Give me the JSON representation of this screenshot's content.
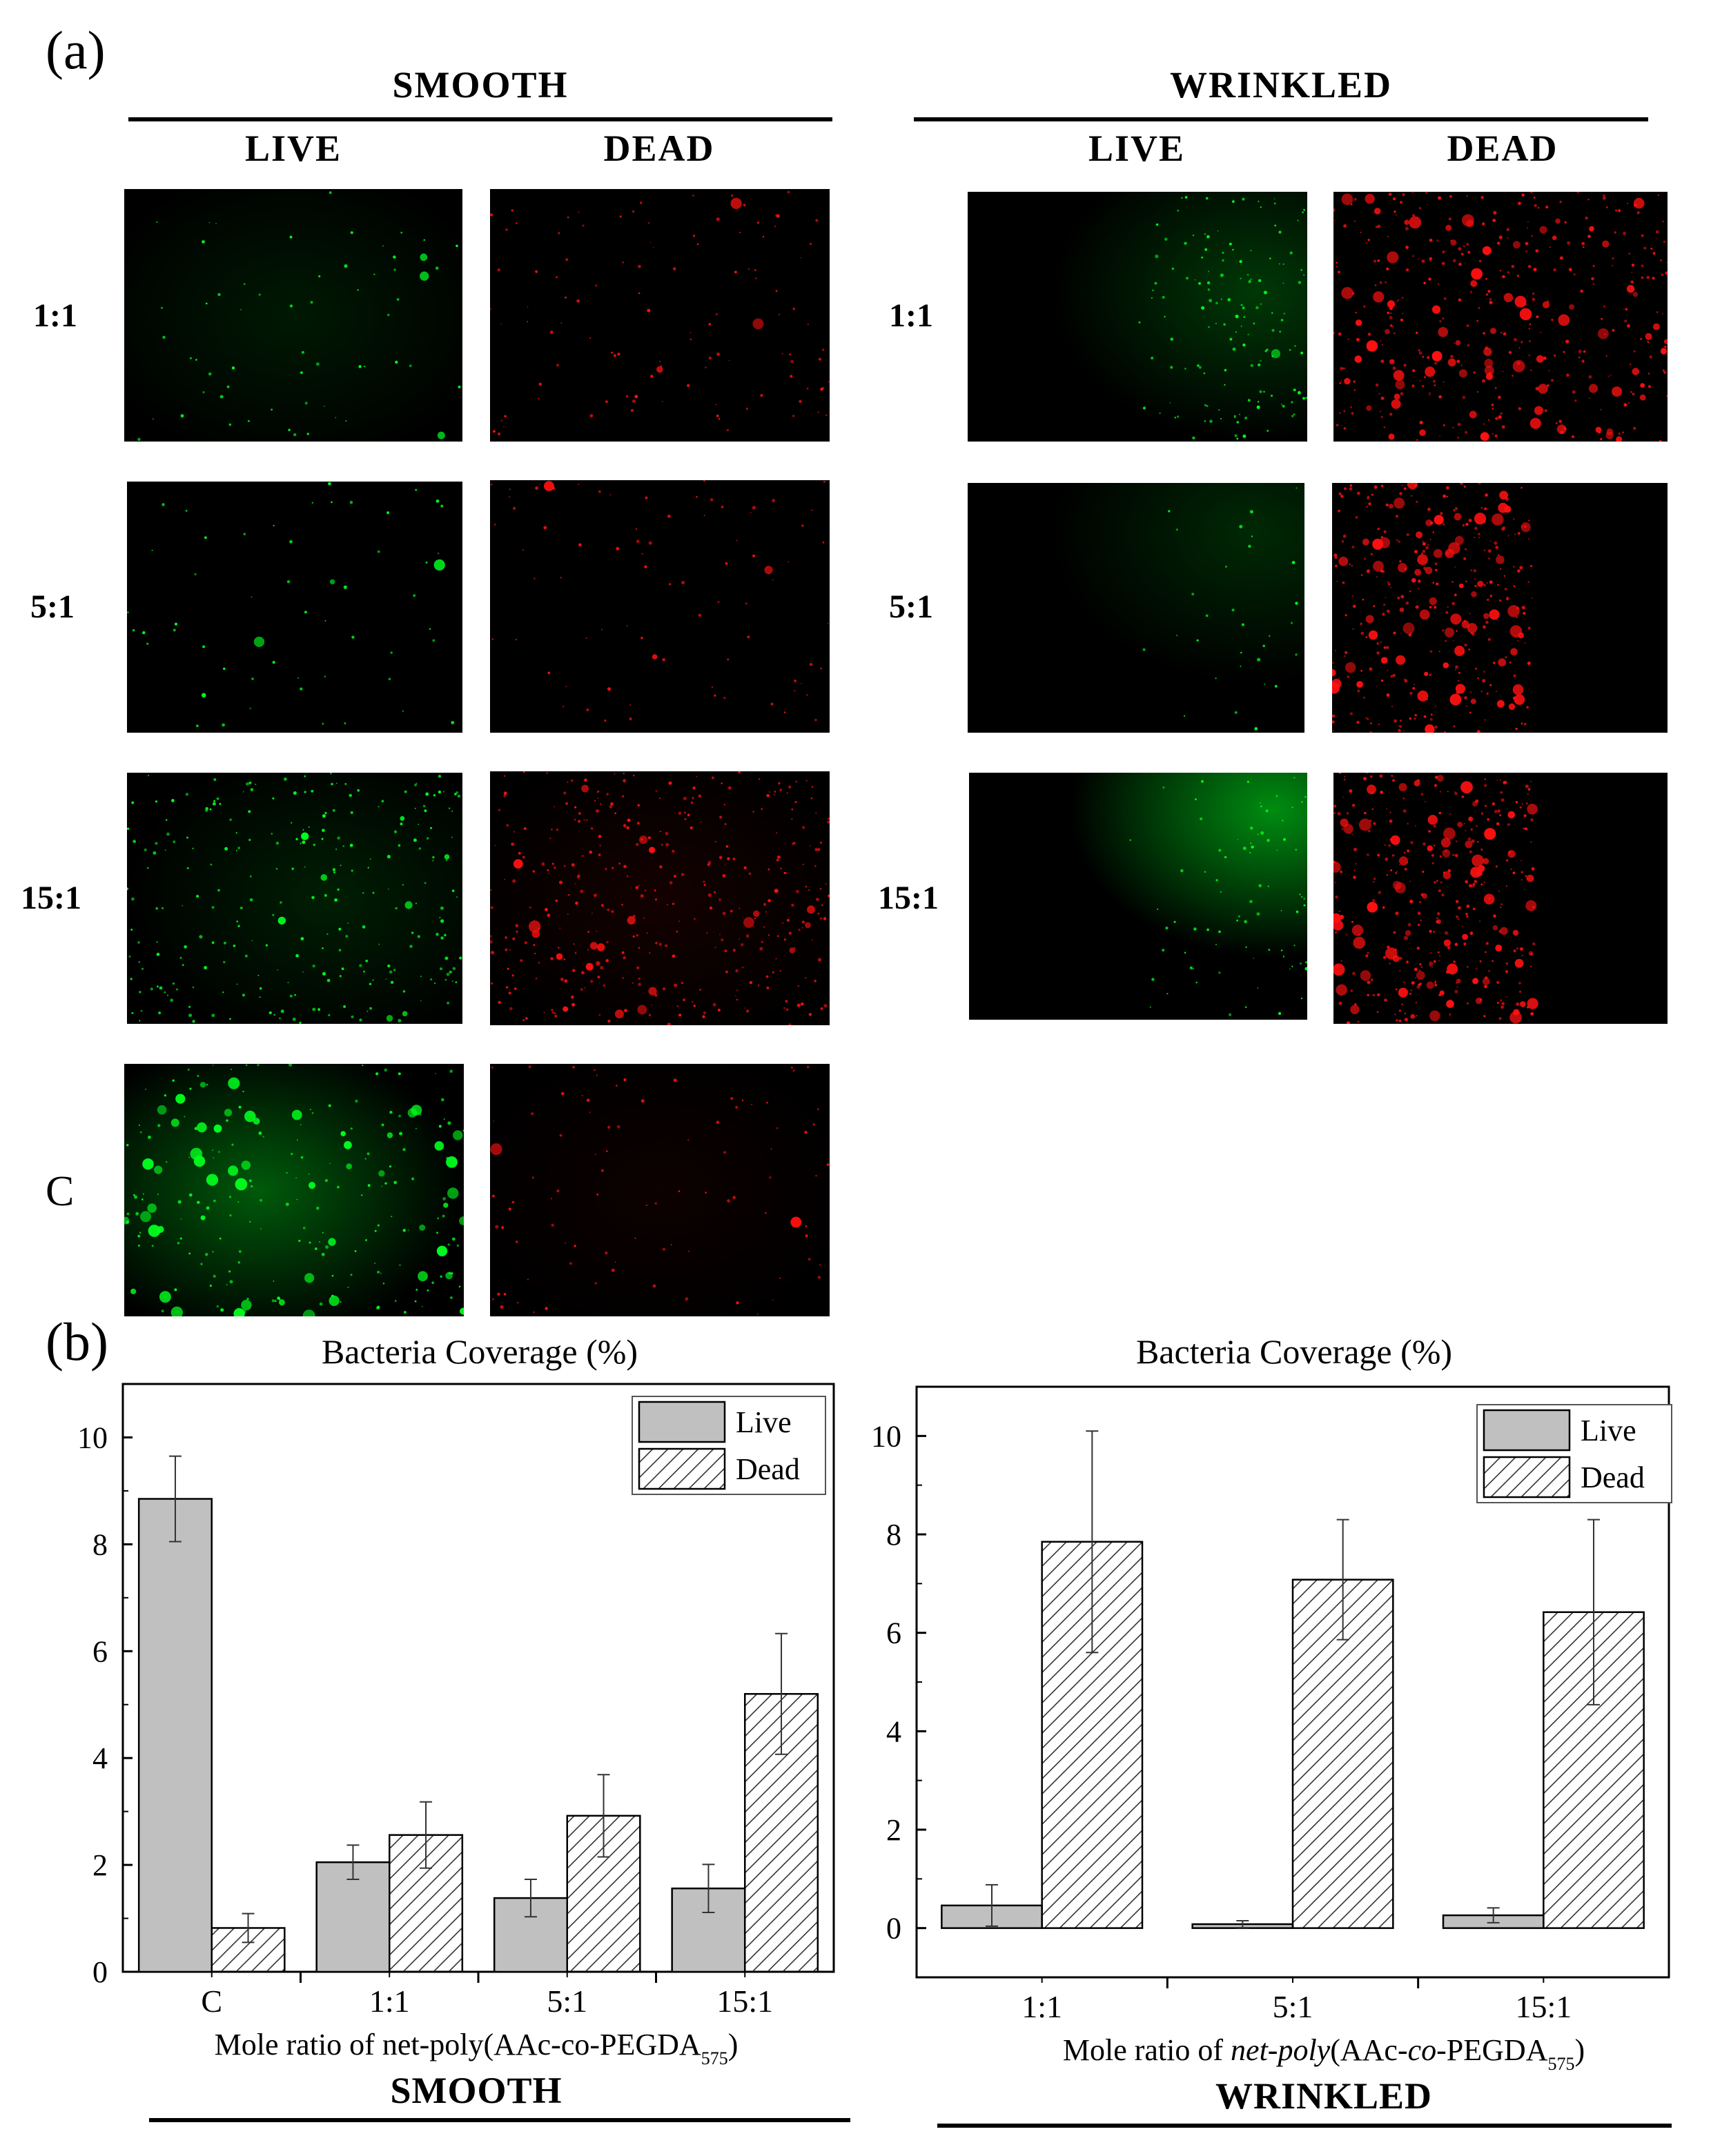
{
  "panel_a": {
    "label": "(a)",
    "smooth": {
      "title": "SMOOTH",
      "live": "LIVE",
      "dead": "DEAD"
    },
    "wrinkled": {
      "title": "WRINKLED",
      "live": "LIVE",
      "dead": "DEAD"
    },
    "rows_smooth": [
      "1:1",
      "5:1",
      "15:1",
      "C"
    ],
    "rows_wrinkled": [
      "1:1",
      "5:1",
      "15:1"
    ],
    "colors": {
      "live": "#00ff1e",
      "dead": "#ff1010",
      "background": "#000000"
    }
  },
  "panel_b": {
    "label": "(b)"
  },
  "chart_data": [
    {
      "type": "bar",
      "title": "Bacteria Coverage (%)",
      "xlabel": "Mole ratio of net-poly(AAc-co-PEGDA575)",
      "xlabel_parts": {
        "main": "Mole ratio of net-poly(AAc-co-PEGDA",
        "sub": "575",
        "close": ")"
      },
      "footer": "SMOOTH",
      "categories": [
        "C",
        "1:1",
        "5:1",
        "15:1"
      ],
      "ylim": [
        0,
        11
      ],
      "yticks": [
        "0",
        "2",
        "4",
        "6",
        "8",
        "10"
      ],
      "legend": {
        "position": "top-right",
        "live": "Live",
        "dead": "Dead"
      },
      "series": [
        {
          "name": "Live",
          "values": [
            8.85,
            2.05,
            1.38,
            1.56
          ],
          "errors": [
            0.8,
            0.32,
            0.35,
            0.45
          ],
          "fill": "#c0c0c0"
        },
        {
          "name": "Dead",
          "values": [
            0.82,
            2.56,
            2.92,
            5.2
          ],
          "errors": [
            0.27,
            0.62,
            0.77,
            1.13
          ],
          "fill": "hatch"
        }
      ]
    },
    {
      "type": "bar",
      "title": "Bacteria Coverage (%)",
      "xlabel": "Mole ratio of net-poly(AAc-co-PEGDA575)",
      "xlabel_parts": {
        "pre": "Mole ratio of ",
        "ital1": "net-poly",
        "mid": "(AAc-",
        "ital2": "co",
        "post": "-PEGDA",
        "sub": "575",
        "close": ")"
      },
      "footer": "WRINKLED",
      "categories": [
        "1:1",
        "5:1",
        "15:1"
      ],
      "ylim": [
        -1,
        11
      ],
      "yticks": [
        "0",
        "2",
        "4",
        "6",
        "8",
        "10"
      ],
      "legend": {
        "position": "top-right",
        "live": "Live",
        "dead": "Dead"
      },
      "series": [
        {
          "name": "Live",
          "values": [
            0.46,
            0.08,
            0.26
          ],
          "errors": [
            0.42,
            0.07,
            0.15
          ],
          "fill": "#c0c0c0"
        },
        {
          "name": "Dead",
          "values": [
            7.85,
            7.08,
            6.42
          ],
          "errors": [
            2.25,
            1.22,
            1.88
          ],
          "fill": "hatch"
        }
      ]
    }
  ]
}
